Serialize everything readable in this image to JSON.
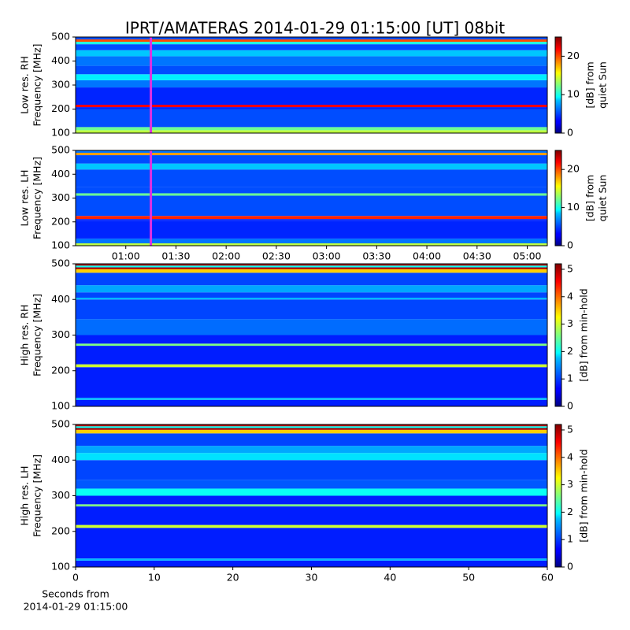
{
  "title": "IPRT/AMATERAS 2014-01-29 01:15:00 [UT]   08bit",
  "chart_data": [
    {
      "type": "heatmap",
      "ylabel": [
        "Low res. RH",
        "Frequency [MHz]"
      ],
      "ylim": [
        100,
        500
      ],
      "yticks": [
        100,
        200,
        300,
        400,
        500
      ],
      "xlim": [
        0.5,
        5.2
      ],
      "vline": {
        "x": 1.25,
        "color": "#e030e0"
      },
      "clim": [
        0,
        25
      ],
      "cticks": [
        0,
        10,
        20
      ],
      "clabel": [
        "[dB] from",
        "quiet Sun"
      ],
      "frequencies": [
        100,
        112,
        125,
        200,
        208,
        218,
        290,
        320,
        345,
        380,
        420,
        445,
        470,
        480,
        490
      ],
      "levels": [
        14,
        12,
        5,
        4,
        22,
        4,
        6,
        9,
        5,
        6,
        8,
        5,
        10,
        20,
        5
      ]
    },
    {
      "type": "heatmap",
      "ylabel": [
        "Low res. LH",
        "Frequency [MHz]"
      ],
      "ylim": [
        100,
        500
      ],
      "yticks": [
        100,
        200,
        300,
        400,
        500
      ],
      "xlim": [
        0.5,
        5.2
      ],
      "xticks": [
        {
          "value": 1,
          "label": "01:00"
        },
        {
          "value": 1.5,
          "label": "01:30"
        },
        {
          "value": 2,
          "label": "02:00"
        },
        {
          "value": 2.5,
          "label": "02:30"
        },
        {
          "value": 3,
          "label": "03:00"
        },
        {
          "value": 3.5,
          "label": "03:30"
        },
        {
          "value": 4,
          "label": "04:00"
        },
        {
          "value": 4.5,
          "label": "04:30"
        },
        {
          "value": 5,
          "label": "05:00"
        }
      ],
      "vline": {
        "x": 1.25,
        "color": "#e030e0"
      },
      "clim": [
        0,
        25
      ],
      "cticks": [
        0,
        10,
        20
      ],
      "clabel": [
        "[dB] from",
        "quiet Sun"
      ],
      "frequencies": [
        100,
        110,
        130,
        205,
        212,
        225,
        300,
        310,
        320,
        345,
        420,
        445,
        480,
        490
      ],
      "levels": [
        14,
        6,
        4,
        4,
        21,
        5,
        5,
        12,
        5,
        5,
        8,
        5,
        18,
        6
      ]
    },
    {
      "type": "heatmap",
      "ylabel": [
        "High res. RH",
        "Frequency [MHz]"
      ],
      "ylim": [
        100,
        500
      ],
      "yticks": [
        100,
        200,
        300,
        400,
        500
      ],
      "xlim": [
        0,
        60
      ],
      "clim": [
        0,
        5.2
      ],
      "cticks": [
        0,
        1,
        2,
        3,
        4,
        5
      ],
      "clabel": [
        "[dB] from min-hold"
      ],
      "frequencies": [
        100,
        118,
        124,
        210,
        218,
        270,
        276,
        300,
        345,
        400,
        405,
        420,
        440,
        475,
        485,
        490,
        495
      ],
      "levels": [
        0.8,
        1.6,
        0.8,
        3,
        0.8,
        2.6,
        0.8,
        1.2,
        1,
        1.6,
        1,
        1.5,
        1,
        3.5,
        5,
        2,
        5
      ]
    },
    {
      "type": "heatmap",
      "ylabel": [
        "High res. LH",
        "Frequency [MHz]"
      ],
      "ylim": [
        100,
        500
      ],
      "yticks": [
        100,
        200,
        300,
        400,
        500
      ],
      "xlim": [
        0,
        60
      ],
      "xticks": [
        0,
        10,
        20,
        30,
        40,
        50,
        60
      ],
      "xlabel": [
        "Seconds from",
        "2014-01-29 01:15:00"
      ],
      "clim": [
        0,
        5.2
      ],
      "cticks": [
        0,
        1,
        2,
        3,
        4,
        5
      ],
      "clabel": [
        "[dB] from min-hold"
      ],
      "frequencies": [
        100,
        118,
        124,
        210,
        218,
        270,
        276,
        300,
        320,
        345,
        395,
        400,
        420,
        440,
        475,
        485,
        490,
        495
      ],
      "levels": [
        0.8,
        1.6,
        0.8,
        3,
        0.8,
        2.6,
        0.8,
        2,
        1.1,
        1,
        1,
        1.8,
        1.5,
        1,
        3.5,
        5,
        2,
        5
      ]
    }
  ]
}
